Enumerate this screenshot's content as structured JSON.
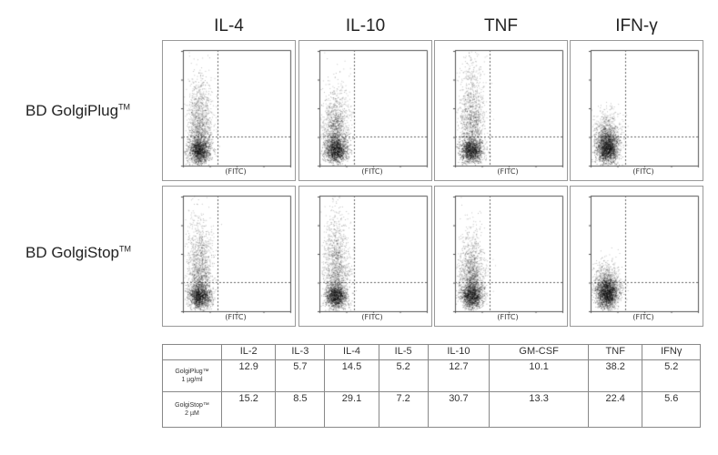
{
  "columns": [
    "IL-4",
    "IL-10",
    "TNF",
    "IFN-γ"
  ],
  "rows": [
    {
      "label": "BD GolgiPlug",
      "tm": "TM"
    },
    {
      "label": "BD GolgiStop",
      "tm": "TM"
    }
  ],
  "axis_label": "(FITC)",
  "chart_data": {
    "type": "table",
    "header": [
      "",
      "IL-2",
      "IL-3",
      "IL-4",
      "IL-5",
      "IL-10",
      "GM-CSF",
      "TNF",
      "IFNγ"
    ],
    "rows": [
      {
        "label": "GolgiPlug™",
        "sub": "1 µg/ml",
        "values": [
          "12.9",
          "5.7",
          "14.5",
          "5.2",
          "12.7",
          "10.1",
          "38.2",
          "5.2"
        ]
      },
      {
        "label": "GolgiStop™",
        "sub": "2 µM",
        "values": [
          "15.2",
          "8.5",
          "29.1",
          "7.2",
          "30.7",
          "13.3",
          "22.4",
          "5.6"
        ]
      }
    ],
    "dot_plots": {
      "type": "scatter",
      "xlabel": "(FITC)",
      "columns": [
        "IL-4",
        "IL-10",
        "TNF",
        "IFN-γ"
      ],
      "rows": [
        "BD GolgiPlug",
        "BD GolgiStop"
      ]
    }
  }
}
